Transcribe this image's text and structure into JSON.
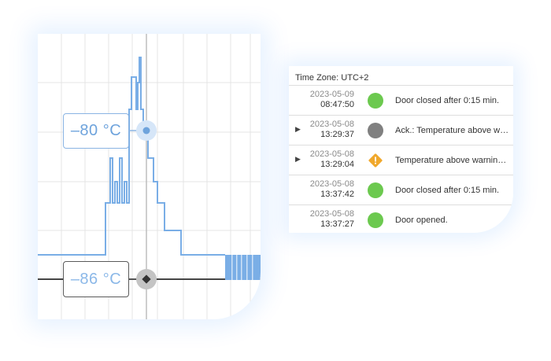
{
  "chart": {
    "callout_primary": "–80 °C",
    "callout_secondary": "–86 °C",
    "colors": {
      "series_primary": "#7aaee6",
      "series_secondary": "#454545",
      "grid": "#e4e4e4"
    }
  },
  "event_log": {
    "timezone_label": "Time Zone: UTC+2",
    "rows": [
      {
        "date": "2023-05-09",
        "time": "08:47:50",
        "status": "ok",
        "status_color": "#6cc94f",
        "message": "Door closed after 0:15 min.",
        "expandable": false
      },
      {
        "date": "2023-05-08",
        "time": "13:29:37",
        "status": "acknowledged",
        "status_color": "#808080",
        "message": "Ack.: Temperature above warning",
        "expandable": true
      },
      {
        "date": "2023-05-08",
        "time": "13:29:04",
        "status": "warning",
        "status_color": "#f0a82c",
        "message": "Temperature above warning limit",
        "expandable": true
      },
      {
        "date": "2023-05-08",
        "time": "13:37:42",
        "status": "ok",
        "status_color": "#6cc94f",
        "message": "Door closed after 0:15 min.",
        "expandable": false
      },
      {
        "date": "2023-05-08",
        "time": "13:37:27",
        "status": "ok",
        "status_color": "#6cc94f",
        "message": "Door opened.",
        "expandable": false
      }
    ]
  }
}
